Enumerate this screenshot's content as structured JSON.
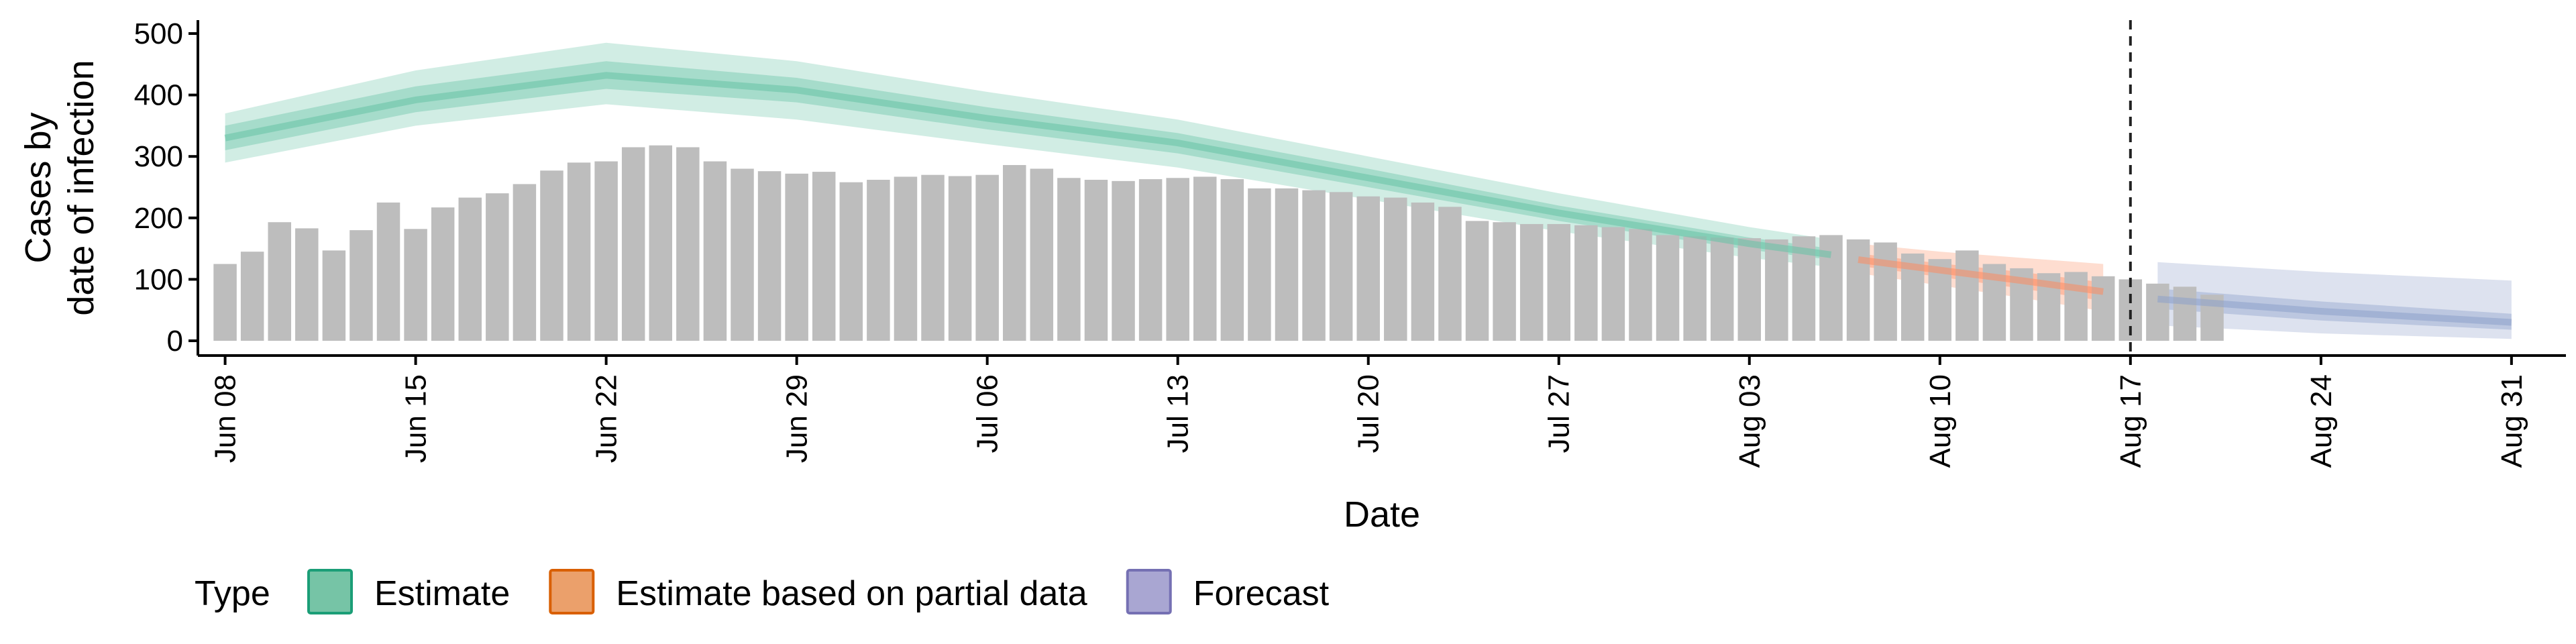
{
  "chart_data": {
    "type": "bar",
    "xlabel": "Date",
    "ylabel_lines": [
      "Cases by",
      "date of infection"
    ],
    "ylim": [
      0,
      500
    ],
    "yticks": [
      0,
      100,
      200,
      300,
      400,
      500
    ],
    "xrange": [
      "2020-06-07",
      "2020-09-02"
    ],
    "xticks": [
      {
        "date": "2020-06-08",
        "label": "Jun 08"
      },
      {
        "date": "2020-06-15",
        "label": "Jun 15"
      },
      {
        "date": "2020-06-22",
        "label": "Jun 22"
      },
      {
        "date": "2020-06-29",
        "label": "Jun 29"
      },
      {
        "date": "2020-07-06",
        "label": "Jul 06"
      },
      {
        "date": "2020-07-13",
        "label": "Jul 13"
      },
      {
        "date": "2020-07-20",
        "label": "Jul 20"
      },
      {
        "date": "2020-07-27",
        "label": "Jul 27"
      },
      {
        "date": "2020-08-03",
        "label": "Aug 03"
      },
      {
        "date": "2020-08-10",
        "label": "Aug 10"
      },
      {
        "date": "2020-08-17",
        "label": "Aug 17"
      },
      {
        "date": "2020-08-24",
        "label": "Aug 24"
      },
      {
        "date": "2020-08-31",
        "label": "Aug 31"
      }
    ],
    "vline_date": "2020-08-17",
    "observed": {
      "start_date": "2020-06-08",
      "values": [
        125,
        145,
        193,
        183,
        147,
        180,
        225,
        182,
        217,
        233,
        240,
        255,
        277,
        290,
        292,
        315,
        318,
        315,
        292,
        280,
        276,
        272,
        275,
        258,
        262,
        267,
        270,
        268,
        270,
        286,
        280,
        265,
        262,
        260,
        263,
        265,
        267,
        263,
        248,
        248,
        245,
        242,
        235,
        233,
        225,
        218,
        195,
        193,
        190,
        190,
        188,
        185,
        182,
        172,
        170,
        168,
        167,
        165,
        170,
        172,
        165,
        160,
        142,
        133,
        147,
        125,
        118,
        110,
        112,
        105,
        100,
        93,
        88,
        75
      ]
    },
    "series": [
      {
        "name": "Estimate",
        "color": "#66c2a5",
        "points": [
          {
            "date": "2020-06-08",
            "median": 330,
            "l50": 310,
            "u50": 350,
            "l90": 290,
            "u90": 370
          },
          {
            "date": "2020-06-15",
            "median": 392,
            "l50": 372,
            "u50": 414,
            "l90": 350,
            "u90": 440
          },
          {
            "date": "2020-06-22",
            "median": 432,
            "l50": 410,
            "u50": 455,
            "l90": 385,
            "u90": 485
          },
          {
            "date": "2020-06-29",
            "median": 408,
            "l50": 388,
            "u50": 428,
            "l90": 360,
            "u90": 455
          },
          {
            "date": "2020-07-06",
            "median": 362,
            "l50": 344,
            "u50": 380,
            "l90": 320,
            "u90": 405
          },
          {
            "date": "2020-07-13",
            "median": 322,
            "l50": 305,
            "u50": 338,
            "l90": 282,
            "u90": 360
          },
          {
            "date": "2020-07-20",
            "median": 265,
            "l50": 250,
            "u50": 280,
            "l90": 230,
            "u90": 300
          },
          {
            "date": "2020-07-27",
            "median": 208,
            "l50": 195,
            "u50": 220,
            "l90": 178,
            "u90": 240
          },
          {
            "date": "2020-08-03",
            "median": 158,
            "l50": 148,
            "u50": 168,
            "l90": 135,
            "u90": 185
          },
          {
            "date": "2020-08-06",
            "median": 140,
            "l50": 132,
            "u50": 150,
            "l90": 120,
            "u90": 165
          }
        ]
      },
      {
        "name": "Estimate based on partial data",
        "color": "#fc8d62",
        "points": [
          {
            "date": "2020-08-07",
            "median": 132,
            "l50": 122,
            "u50": 142,
            "l90": 110,
            "u90": 158
          },
          {
            "date": "2020-08-10",
            "median": 115,
            "l50": 104,
            "u50": 126,
            "l90": 90,
            "u90": 145
          },
          {
            "date": "2020-08-13",
            "median": 98,
            "l50": 85,
            "u50": 112,
            "l90": 70,
            "u90": 135
          },
          {
            "date": "2020-08-16",
            "median": 80,
            "l50": 65,
            "u50": 95,
            "l90": 48,
            "u90": 125
          }
        ]
      },
      {
        "name": "Forecast",
        "color": "#8da0cb",
        "points": [
          {
            "date": "2020-08-18",
            "median": 68,
            "l50": 52,
            "u50": 85,
            "l90": 25,
            "u90": 128
          },
          {
            "date": "2020-08-24",
            "median": 48,
            "l50": 33,
            "u50": 64,
            "l90": 12,
            "u90": 112
          },
          {
            "date": "2020-08-31",
            "median": 30,
            "l50": 18,
            "u50": 44,
            "l90": 3,
            "u90": 98
          }
        ]
      }
    ],
    "legend": {
      "title": "Type",
      "position": "bottom-left",
      "items": [
        {
          "label": "Estimate",
          "fill": "#76c4a6",
          "stroke": "#1b9e77"
        },
        {
          "label": "Estimate based on partial data",
          "fill": "#eba06b",
          "stroke": "#d95f02"
        },
        {
          "label": "Forecast",
          "fill": "#a9a6d2",
          "stroke": "#7570b3"
        }
      ]
    },
    "bar_color": "#bdbdbd"
  }
}
